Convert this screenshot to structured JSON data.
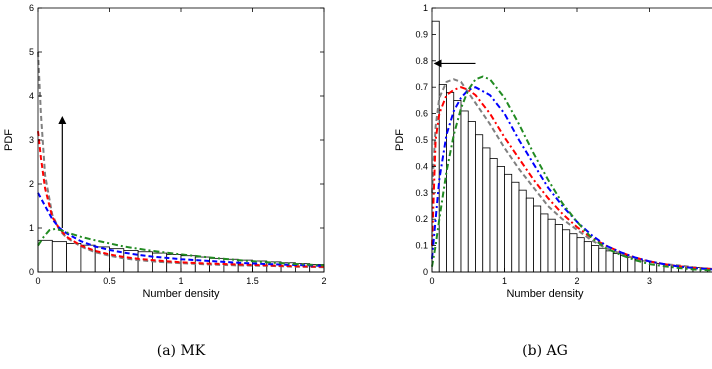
{
  "chart_data": [
    {
      "id": "a",
      "type": "bar+line",
      "caption": "(a)  MK",
      "xlabel": "Number density",
      "ylabel": "PDF",
      "xlim": [
        0,
        2
      ],
      "ylim": [
        0,
        6
      ],
      "xticks": [
        0,
        0.5,
        1,
        1.5,
        2
      ],
      "xtick_labels": [
        "0",
        "0.5",
        "1",
        "1.5",
        "2"
      ],
      "yticks": [
        0,
        1,
        2,
        3,
        4,
        5,
        6
      ],
      "ytick_labels": [
        "0",
        "1",
        "2",
        "3",
        "4",
        "5",
        "6"
      ],
      "bar_width": 0.1,
      "bars": [
        0.72,
        0.69,
        0.65,
        0.61,
        0.57,
        0.53,
        0.49,
        0.46,
        0.43,
        0.4,
        0.37,
        0.34,
        0.31,
        0.29,
        0.27,
        0.25,
        0.23,
        0.21,
        0.19,
        0.17
      ],
      "curves": [
        {
          "color": "#808080",
          "dash": "5,3",
          "x": [
            0,
            0.02,
            0.05,
            0.1,
            0.15,
            0.2,
            0.3,
            0.4,
            0.5,
            0.6,
            0.7,
            0.8,
            1.0,
            1.2,
            1.4,
            1.6,
            1.8,
            2.0
          ],
          "y": [
            5.0,
            3.6,
            2.2,
            1.3,
            0.95,
            0.78,
            0.58,
            0.45,
            0.37,
            0.31,
            0.27,
            0.24,
            0.2,
            0.17,
            0.15,
            0.14,
            0.12,
            0.11
          ]
        },
        {
          "color": "#ff0000",
          "dash": "5,3",
          "x": [
            0,
            0.02,
            0.05,
            0.1,
            0.15,
            0.2,
            0.3,
            0.4,
            0.5,
            0.6,
            0.7,
            0.8,
            1.0,
            1.2,
            1.4,
            1.6,
            1.8,
            2.0
          ],
          "y": [
            3.2,
            2.6,
            1.9,
            1.25,
            0.98,
            0.8,
            0.6,
            0.48,
            0.4,
            0.34,
            0.3,
            0.27,
            0.22,
            0.19,
            0.17,
            0.15,
            0.13,
            0.12
          ]
        },
        {
          "color": "#0000ff",
          "dash": "5,3",
          "x": [
            0,
            0.05,
            0.1,
            0.15,
            0.2,
            0.3,
            0.4,
            0.5,
            0.6,
            0.7,
            0.8,
            1.0,
            1.2,
            1.4,
            1.6,
            1.8,
            2.0
          ],
          "y": [
            1.8,
            1.5,
            1.2,
            1.0,
            0.88,
            0.7,
            0.58,
            0.5,
            0.44,
            0.39,
            0.35,
            0.29,
            0.25,
            0.21,
            0.18,
            0.16,
            0.14
          ]
        },
        {
          "color": "#228b22",
          "dash": "6,3,2,3",
          "x": [
            0,
            0.04,
            0.08,
            0.12,
            0.16,
            0.2,
            0.3,
            0.4,
            0.5,
            0.6,
            0.7,
            0.8,
            1.0,
            1.2,
            1.4,
            1.6,
            1.8,
            2.0
          ],
          "y": [
            0.6,
            0.8,
            0.95,
            0.98,
            0.95,
            0.9,
            0.8,
            0.72,
            0.65,
            0.58,
            0.53,
            0.48,
            0.4,
            0.33,
            0.27,
            0.22,
            0.18,
            0.15
          ]
        }
      ],
      "arrow": {
        "direction": "up",
        "x": 0.17,
        "y_from": 1.0,
        "y_to": 3.5
      }
    },
    {
      "id": "b",
      "type": "bar+line",
      "caption": "(b)  AG",
      "xlabel": "Number density",
      "ylabel": "PDF",
      "xlim": [
        0,
        4
      ],
      "ylim": [
        0,
        1
      ],
      "xticks": [
        0,
        1,
        2,
        3
      ],
      "xtick_labels": [
        "0",
        "1",
        "2",
        "3"
      ],
      "yticks": [
        0,
        0.1,
        0.2,
        0.3,
        0.4,
        0.5,
        0.6,
        0.7,
        0.8,
        0.9,
        1
      ],
      "ytick_labels": [
        "0",
        "0.1",
        "0.2",
        "0.3",
        "0.4",
        "0.5",
        "0.6",
        "0.7",
        "0.8",
        "0.9",
        "1"
      ],
      "bar_width": 0.1,
      "bars": [
        0.95,
        0.71,
        0.68,
        0.65,
        0.61,
        0.57,
        0.52,
        0.47,
        0.43,
        0.4,
        0.37,
        0.34,
        0.31,
        0.28,
        0.25,
        0.22,
        0.2,
        0.18,
        0.16,
        0.145,
        0.13,
        0.115,
        0.1,
        0.09,
        0.08,
        0.07,
        0.062,
        0.055,
        0.048,
        0.042,
        0.037,
        0.032,
        0.028,
        0.025,
        0.022,
        0.019,
        0.017,
        0.015,
        0.013,
        0.012
      ],
      "curves": [
        {
          "color": "#808080",
          "dash": "5,3",
          "x": [
            0,
            0.05,
            0.1,
            0.2,
            0.3,
            0.4,
            0.5,
            0.6,
            0.8,
            1.0,
            1.2,
            1.4,
            1.6,
            1.8,
            2.0,
            2.2,
            2.4,
            2.6,
            2.8,
            3.0,
            3.2,
            3.4,
            3.6,
            3.8,
            4.0
          ],
          "y": [
            0.3,
            0.55,
            0.66,
            0.72,
            0.73,
            0.72,
            0.68,
            0.64,
            0.56,
            0.47,
            0.39,
            0.32,
            0.25,
            0.2,
            0.16,
            0.12,
            0.09,
            0.07,
            0.05,
            0.04,
            0.03,
            0.025,
            0.018,
            0.013,
            0.01
          ]
        },
        {
          "color": "#ff0000",
          "dash": "6,3,2,3",
          "x": [
            0,
            0.05,
            0.1,
            0.2,
            0.3,
            0.4,
            0.5,
            0.6,
            0.8,
            1.0,
            1.2,
            1.4,
            1.6,
            1.8,
            2.0,
            2.2,
            2.4,
            2.6,
            2.8,
            3.0,
            3.2,
            3.4,
            3.6,
            3.8,
            4.0
          ],
          "y": [
            0.1,
            0.5,
            0.6,
            0.67,
            0.69,
            0.7,
            0.69,
            0.67,
            0.6,
            0.51,
            0.43,
            0.35,
            0.28,
            0.22,
            0.17,
            0.13,
            0.1,
            0.075,
            0.055,
            0.04,
            0.03,
            0.022,
            0.016,
            0.012,
            0.009
          ]
        },
        {
          "color": "#0000ff",
          "dash": "6,3,2,3",
          "x": [
            0,
            0.05,
            0.1,
            0.2,
            0.3,
            0.4,
            0.5,
            0.6,
            0.8,
            1.0,
            1.2,
            1.4,
            1.6,
            1.8,
            2.0,
            2.2,
            2.4,
            2.6,
            2.8,
            3.0,
            3.2,
            3.4,
            3.6,
            3.8,
            4.0
          ],
          "y": [
            0.05,
            0.2,
            0.35,
            0.52,
            0.61,
            0.66,
            0.69,
            0.7,
            0.67,
            0.6,
            0.5,
            0.41,
            0.32,
            0.25,
            0.19,
            0.14,
            0.1,
            0.075,
            0.055,
            0.04,
            0.03,
            0.021,
            0.015,
            0.011,
            0.008
          ]
        },
        {
          "color": "#228b22",
          "dash": "6,3,2,3",
          "x": [
            0,
            0.05,
            0.1,
            0.2,
            0.3,
            0.4,
            0.5,
            0.6,
            0.7,
            0.8,
            1.0,
            1.2,
            1.4,
            1.6,
            1.8,
            2.0,
            2.2,
            2.4,
            2.6,
            2.8,
            3.0,
            3.2,
            3.4,
            3.6,
            3.8,
            4.0
          ],
          "y": [
            0.02,
            0.1,
            0.2,
            0.38,
            0.52,
            0.62,
            0.69,
            0.73,
            0.74,
            0.73,
            0.66,
            0.56,
            0.45,
            0.35,
            0.26,
            0.19,
            0.13,
            0.09,
            0.065,
            0.045,
            0.03,
            0.022,
            0.015,
            0.01,
            0.007,
            0.005
          ]
        }
      ],
      "arrow": {
        "direction": "left",
        "y": 0.79,
        "x_from": 0.6,
        "x_to": 0.05
      }
    }
  ]
}
